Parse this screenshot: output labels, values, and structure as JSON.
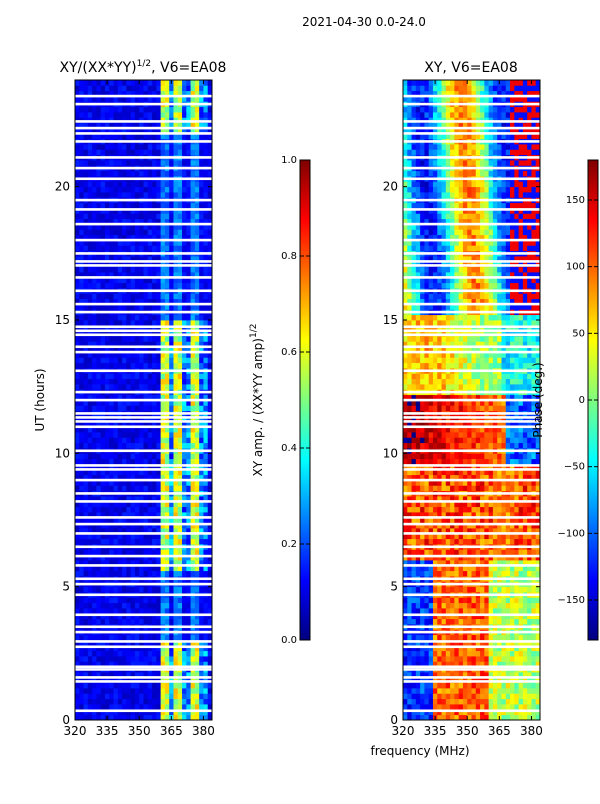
{
  "figure": {
    "suptitle": "2021-04-30 0.0-24.0",
    "xlabel": "frequency (MHz)"
  },
  "colormap": [
    "#00007f",
    "#0000ff",
    "#007fff",
    "#00ffff",
    "#7fff7f",
    "#ffff00",
    "#ff7f00",
    "#ff0000",
    "#7f0000"
  ],
  "chart_data": [
    {
      "type": "heatmap",
      "title_main": "XY/(XX*YY)",
      "title_sup": "1/2",
      "title_tail": ", V6=EA08",
      "xlabel": "",
      "ylabel": "UT (hours)",
      "xlim": [
        320,
        384
      ],
      "ylim": [
        0,
        24
      ],
      "xticks": [
        320,
        335,
        350,
        365,
        380
      ],
      "yticks": [
        0,
        5,
        10,
        15,
        20
      ],
      "colorbar": {
        "label_main": "XY amp. / (XX*YY amp)",
        "label_sup": "1/2",
        "range": [
          0.0,
          1.0
        ],
        "ticks": [
          "0.0",
          "0.2",
          "0.4",
          "0.6",
          "0.8",
          "1.0"
        ]
      }
    },
    {
      "type": "heatmap",
      "title_main": "XY, V6=EA08",
      "xlabel": "frequency (MHz)",
      "ylabel": "",
      "xlim": [
        320,
        384
      ],
      "ylim": [
        0,
        24
      ],
      "xticks": [
        320,
        335,
        350,
        365,
        380
      ],
      "yticks": [
        0,
        5,
        10,
        15,
        20
      ],
      "colorbar": {
        "label_main": "Phase (deg.)",
        "range": [
          -180,
          180
        ],
        "ticks": [
          "-150",
          "-100",
          "-50",
          "0",
          "50",
          "100",
          "150"
        ]
      }
    }
  ],
  "flagged_hours": [
    0.35,
    1.45,
    1.6,
    1.9,
    2.0,
    2.75,
    2.95,
    3.3,
    3.5,
    3.95,
    4.7,
    5.1,
    5.3,
    5.8,
    6.15,
    6.5,
    7.0,
    7.35,
    7.6,
    8.2,
    8.5,
    9.0,
    9.4,
    9.55,
    10.1,
    11.0,
    11.2,
    11.35,
    11.5,
    12.0,
    12.3,
    13.1,
    13.8,
    14.0,
    14.45,
    14.6,
    14.75,
    15.3,
    15.6,
    16.1,
    16.6,
    17.05,
    17.2,
    17.5,
    18.0,
    18.6,
    19.15,
    19.5,
    20.3,
    20.7,
    21.1,
    21.7,
    22.0,
    22.2,
    22.45,
    23.1,
    23.4
  ]
}
